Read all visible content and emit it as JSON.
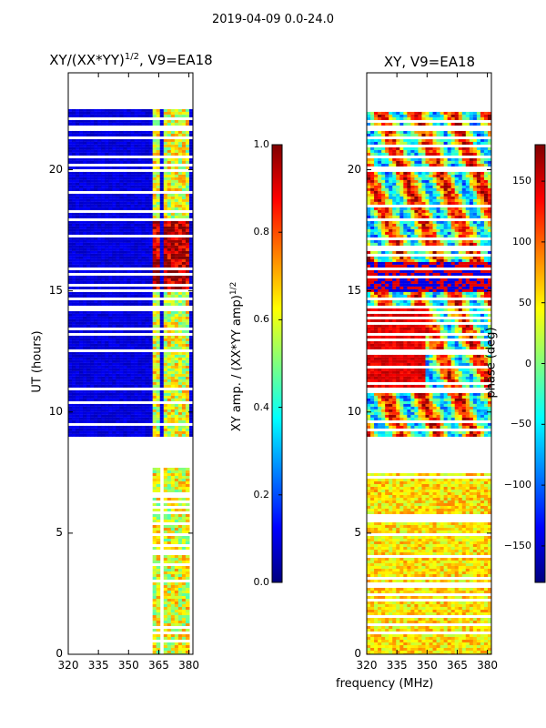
{
  "figure_title": "2019-04-09 0.0-24.0",
  "chart_data": [
    {
      "type": "heatmap",
      "title_prefix": "XY/(XX*YY)",
      "title_power": "1/2",
      "title_suffix": ", V9=EA18",
      "xlabel": "",
      "ylabel": "UT (hours)",
      "xlim": [
        320,
        382
      ],
      "ylim": [
        0,
        24
      ],
      "xticks": [
        320,
        335,
        350,
        365,
        380
      ],
      "yticks": [
        0,
        5,
        10,
        15,
        20
      ],
      "data_bands": [
        [
          0.0,
          7.7
        ],
        [
          9.0,
          22.5
        ]
      ],
      "bright_channels_mhz": [
        [
          362,
          366
        ],
        [
          368,
          372
        ],
        [
          373,
          376
        ],
        [
          377,
          381
        ]
      ],
      "colorbar": {
        "label_prefix": "XY amp. / (XX*YY amp)",
        "label_power": "1/2",
        "range": [
          0.0,
          1.0
        ],
        "ticks": [
          "0.0",
          "0.2",
          "0.4",
          "0.6",
          "0.8",
          "1.0"
        ]
      }
    },
    {
      "type": "heatmap",
      "title": "XY, V9=EA18",
      "xlabel": "frequency (MHz)",
      "ylabel": "",
      "xlim": [
        320,
        382
      ],
      "ylim": [
        0,
        24
      ],
      "xticks": [
        320,
        335,
        350,
        365,
        380
      ],
      "yticks": [
        0,
        5,
        10,
        15,
        20
      ],
      "data_bands": [
        [
          0.0,
          7.7
        ],
        [
          9.0,
          22.5
        ]
      ],
      "colorbar": {
        "label": "phase (deg)",
        "range": [
          -180,
          180
        ],
        "ticks": [
          "150",
          "100",
          "50",
          "0",
          "−50",
          "−100",
          "−150"
        ]
      }
    }
  ]
}
